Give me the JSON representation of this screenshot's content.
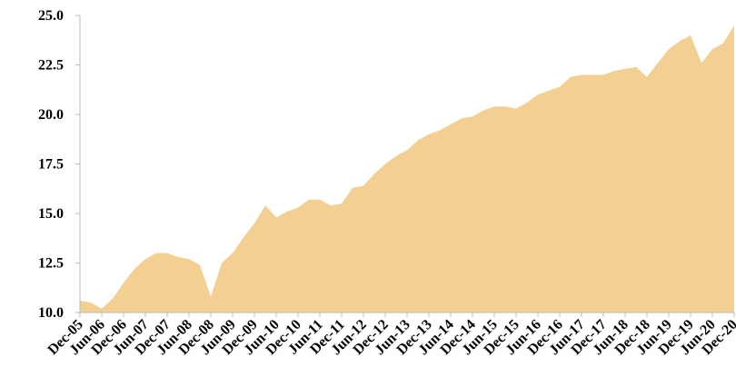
{
  "chart_data": {
    "type": "area",
    "color": "#f3cf91",
    "x": [
      "Dec-05",
      null,
      "Jun-06",
      null,
      "Dec-06",
      null,
      "Jun-07",
      null,
      "Dec-07",
      null,
      "Jun-08",
      null,
      "Dec-08",
      null,
      "Jun-09",
      null,
      "Dec-09",
      null,
      "Jun-10",
      null,
      "Dec-10",
      null,
      "Jun-11",
      null,
      "Dec-11",
      null,
      "Jun-12",
      null,
      "Dec-12",
      null,
      "Jun-13",
      null,
      "Dec-13",
      null,
      "Jun-14",
      null,
      "Dec-14",
      null,
      "Jun-15",
      null,
      "Dec-15",
      null,
      "Jun-16",
      null,
      "Dec-16",
      null,
      "Jun-17",
      null,
      "Dec-17",
      null,
      "Jun-18",
      null,
      "Dec-18",
      null,
      "Jun-19",
      null,
      "Dec-19",
      null,
      "Jun-20",
      null,
      "Dec-20"
    ],
    "values": [
      10.6,
      10.5,
      10.2,
      10.7,
      11.5,
      12.2,
      12.7,
      13.0,
      13.0,
      12.8,
      12.7,
      12.4,
      10.8,
      12.5,
      13.0,
      13.8,
      14.5,
      15.4,
      14.8,
      15.1,
      15.3,
      15.7,
      15.7,
      15.4,
      15.5,
      16.3,
      16.4,
      17.0,
      17.5,
      17.9,
      18.2,
      18.7,
      19.0,
      19.2,
      19.5,
      19.8,
      19.9,
      20.2,
      20.4,
      20.4,
      20.3,
      20.6,
      21.0,
      21.2,
      21.4,
      21.9,
      22.0,
      22.0,
      22.0,
      22.2,
      22.3,
      22.4,
      21.9,
      22.6,
      23.3,
      23.7,
      24.0,
      22.6,
      23.3,
      23.6,
      24.5
    ],
    "ylim": [
      10,
      25
    ],
    "yticks": [
      {
        "value": 10,
        "label": "10.0"
      },
      12.5,
      {
        "value": 15,
        "label": "15.0"
      },
      17.5,
      {
        "value": 20,
        "label": "20.0"
      },
      22.5,
      {
        "value": 25,
        "label": "25.0"
      }
    ]
  }
}
